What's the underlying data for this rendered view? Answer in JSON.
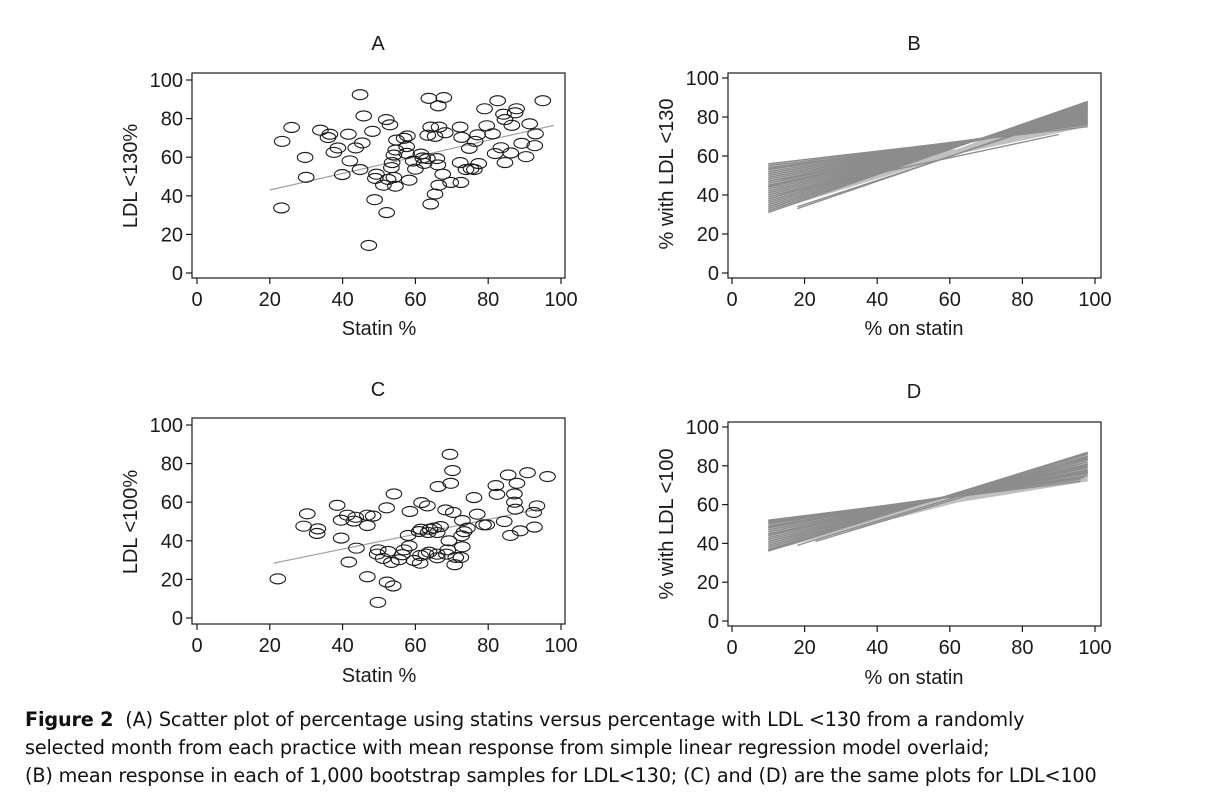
{
  "caption": {
    "label": "Figure 2",
    "lines": [
      "(A) Scatter plot of percentage using statins versus percentage with LDL <130 from a randomly",
      "selected month from each practice with mean response from simple linear regression model overlaid;",
      "(B) mean response in each of 1,000 bootstrap samples for LDL<130; (C) and (D) are the same plots for LDL<100"
    ]
  },
  "colors": {
    "axis": "#1a1a1a",
    "marker_stroke": "#1a1a1a",
    "regression_line": "#a0a0a0",
    "bootstrap_lines": "#8c8c8c"
  },
  "chart_data": [
    {
      "id": "A",
      "type": "scatter",
      "title": "A",
      "xlabel": "Statin %",
      "ylabel": "LDL <130%",
      "xlim": [
        0,
        100
      ],
      "ylim": [
        0,
        100
      ],
      "xticks": [
        0,
        20,
        40,
        60,
        80,
        100
      ],
      "yticks": [
        0,
        20,
        40,
        60,
        80,
        100
      ],
      "grid": false,
      "marker": "hollow-ellipse",
      "points": [
        [
          23.2,
          33.7
        ],
        [
          23.4,
          68.2
        ],
        [
          26,
          75.4
        ],
        [
          29.7,
          59.9
        ],
        [
          30,
          49.6
        ],
        [
          33.9,
          74
        ],
        [
          36.5,
          71.9
        ],
        [
          36,
          70.2
        ],
        [
          37.6,
          62.5
        ],
        [
          38.7,
          64.8
        ],
        [
          39.9,
          51
        ],
        [
          41.6,
          71.9
        ],
        [
          42,
          58.1
        ],
        [
          43.6,
          64.8
        ],
        [
          44.8,
          92.4
        ],
        [
          45.4,
          67.4
        ],
        [
          45.8,
          81.4
        ],
        [
          44.8,
          53.6
        ],
        [
          48.2,
          73.4
        ],
        [
          48.8,
          38
        ],
        [
          47.2,
          14.3
        ],
        [
          49.3,
          51.2
        ],
        [
          49,
          49
        ],
        [
          52,
          79.5
        ],
        [
          53,
          76.8
        ],
        [
          51.2,
          45.5
        ],
        [
          52.5,
          48.5
        ],
        [
          54.1,
          49.5
        ],
        [
          54.5,
          45
        ],
        [
          52.1,
          31.3
        ],
        [
          53.6,
          57.2
        ],
        [
          53.4,
          54.6
        ],
        [
          54.1,
          61.1
        ],
        [
          54.6,
          63.7
        ],
        [
          54.8,
          68.9
        ],
        [
          56.9,
          69.8
        ],
        [
          57.8,
          71
        ],
        [
          57.6,
          65.5
        ],
        [
          57.6,
          62
        ],
        [
          58.3,
          48.1
        ],
        [
          59.4,
          58
        ],
        [
          60,
          53.8
        ],
        [
          61.5,
          61.6
        ],
        [
          62,
          59.6
        ],
        [
          62.4,
          56.8
        ],
        [
          63.3,
          59.3
        ],
        [
          63.7,
          90.5
        ],
        [
          67.8,
          90.9
        ],
        [
          66.3,
          86.6
        ],
        [
          64.2,
          75.6
        ],
        [
          66.5,
          75.6
        ],
        [
          63.4,
          71.4
        ],
        [
          65.4,
          70.8
        ],
        [
          68.2,
          72.7
        ],
        [
          65.9,
          59.3
        ],
        [
          66.2,
          56
        ],
        [
          67.5,
          51.2
        ],
        [
          66.4,
          45.5
        ],
        [
          65.4,
          40.9
        ],
        [
          64.2,
          35.7
        ],
        [
          69.7,
          46.9
        ],
        [
          72.5,
          46.9
        ],
        [
          72.3,
          75.6
        ],
        [
          72.7,
          70.3
        ],
        [
          72.3,
          57.2
        ],
        [
          73.9,
          53.6
        ],
        [
          75.3,
          54
        ],
        [
          76.2,
          53.6
        ],
        [
          77.4,
          56.7
        ],
        [
          74.8,
          64.6
        ],
        [
          76.4,
          68.2
        ],
        [
          77.1,
          71.6
        ],
        [
          79,
          85.1
        ],
        [
          79.6,
          76.3
        ],
        [
          81.2,
          72.1
        ],
        [
          82.6,
          89.3
        ],
        [
          81.9,
          61.9
        ],
        [
          83.5,
          64.9
        ],
        [
          84.6,
          57.2
        ],
        [
          86.2,
          62.2
        ],
        [
          84.2,
          82.3
        ],
        [
          84.6,
          79.5
        ],
        [
          86.5,
          76.5
        ],
        [
          87.8,
          85.1
        ],
        [
          87.4,
          83
        ],
        [
          89.2,
          67.2
        ],
        [
          90.4,
          60.3
        ],
        [
          91.4,
          77.3
        ],
        [
          92.8,
          66
        ],
        [
          93,
          72.1
        ],
        [
          95,
          89.3
        ]
      ],
      "regression": {
        "x": [
          20,
          98
        ],
        "y": [
          43,
          76.5
        ]
      }
    },
    {
      "id": "B",
      "type": "line",
      "title": "B",
      "xlabel": "% on statin",
      "ylabel": "% with LDL <130",
      "xlim": [
        0,
        100
      ],
      "ylim": [
        0,
        100
      ],
      "xticks": [
        0,
        20,
        40,
        60,
        80,
        100
      ],
      "yticks": [
        0,
        20,
        40,
        60,
        80,
        100
      ],
      "grid": false,
      "description": "Mean response lines from 1,000 bootstrap samples (representative subset shown)",
      "band": {
        "x_start": 10,
        "x_end": 98,
        "y_at_start": [
          31,
          56
        ],
        "y_at_end": [
          75,
          88
        ]
      },
      "lines": [
        [
          10,
          56,
          98,
          75
        ],
        [
          10,
          55,
          98,
          76
        ],
        [
          10,
          54,
          98,
          76.5
        ],
        [
          10,
          53,
          98,
          77
        ],
        [
          10,
          52,
          98,
          77.5
        ],
        [
          10,
          51,
          98,
          78
        ],
        [
          10,
          50,
          98,
          78.5
        ],
        [
          10,
          49,
          98,
          79
        ],
        [
          10,
          48,
          98,
          79.5
        ],
        [
          10,
          47,
          98,
          80
        ],
        [
          10,
          46,
          98,
          80.5
        ],
        [
          10,
          45,
          98,
          81
        ],
        [
          10,
          44,
          98,
          81.5
        ],
        [
          10,
          43,
          98,
          82
        ],
        [
          10,
          42,
          98,
          82.5
        ],
        [
          10,
          41,
          98,
          83
        ],
        [
          10,
          40,
          98,
          83.5
        ],
        [
          10,
          39,
          98,
          84
        ],
        [
          10,
          38,
          98,
          84.5
        ],
        [
          10,
          37,
          98,
          85
        ],
        [
          10,
          36,
          98,
          85.5
        ],
        [
          10,
          35,
          98,
          86
        ],
        [
          10,
          34,
          98,
          86.5
        ],
        [
          10,
          33,
          98,
          87
        ],
        [
          10,
          32,
          98,
          87.5
        ],
        [
          10,
          31,
          98,
          88
        ],
        [
          18,
          33,
          98,
          84
        ],
        [
          18,
          34,
          98,
          83
        ],
        [
          12,
          40,
          90,
          71
        ],
        [
          14,
          48,
          96,
          79
        ],
        [
          10,
          53.5,
          97,
          76
        ],
        [
          10,
          44.5,
          98,
          80.2
        ]
      ]
    },
    {
      "id": "C",
      "type": "scatter",
      "title": "C",
      "xlabel": "Statin %",
      "ylabel": "LDL <100%",
      "xlim": [
        0,
        100
      ],
      "ylim": [
        0,
        100
      ],
      "xticks": [
        0,
        20,
        40,
        60,
        80,
        100
      ],
      "yticks": [
        0,
        20,
        40,
        60,
        80,
        100
      ],
      "grid": false,
      "marker": "hollow-ellipse",
      "points": [
        [
          22.2,
          20.3
        ],
        [
          29.3,
          47.6
        ],
        [
          30.3,
          54
        ],
        [
          33.2,
          46.2
        ],
        [
          33,
          43.8
        ],
        [
          38.5,
          58.4
        ],
        [
          39.6,
          41.4
        ],
        [
          39.6,
          50.7
        ],
        [
          41.3,
          53.3
        ],
        [
          41.7,
          29
        ],
        [
          43.1,
          50.2
        ],
        [
          43.6,
          52.2
        ],
        [
          43.8,
          36.2
        ],
        [
          46.8,
          21.4
        ],
        [
          46.8,
          47.9
        ],
        [
          46.8,
          53.3
        ],
        [
          48.4,
          52.8
        ],
        [
          49.7,
          8.1
        ],
        [
          49.8,
          35.3
        ],
        [
          49.5,
          33.1
        ],
        [
          51.1,
          30.9
        ],
        [
          52.2,
          18.6
        ],
        [
          53.9,
          16.6
        ],
        [
          52.1,
          57.1
        ],
        [
          54.1,
          64.3
        ],
        [
          52.5,
          34.5
        ],
        [
          53.4,
          28.8
        ],
        [
          55.5,
          30.2
        ],
        [
          56.4,
          32.8
        ],
        [
          56.9,
          35.3
        ],
        [
          58.3,
          37.4
        ],
        [
          58,
          42.8
        ],
        [
          58.5,
          55.2
        ],
        [
          59.6,
          29.8
        ],
        [
          61.3,
          28.4
        ],
        [
          61.4,
          32.4
        ],
        [
          61,
          44.8
        ],
        [
          61.7,
          59.8
        ],
        [
          63.3,
          58.1
        ],
        [
          61.5,
          46
        ],
        [
          63.5,
          44.3
        ],
        [
          64,
          46
        ],
        [
          62.9,
          33.1
        ],
        [
          63.8,
          34.1
        ],
        [
          65.1,
          46.6
        ],
        [
          66,
          44.3
        ],
        [
          66.9,
          47.4
        ],
        [
          66,
          31.2
        ],
        [
          66,
          33.1
        ],
        [
          66.2,
          68.1
        ],
        [
          68.3,
          56
        ],
        [
          68.9,
          35.3
        ],
        [
          68.5,
          33.1
        ],
        [
          69.2,
          40
        ],
        [
          69.5,
          84.8
        ],
        [
          70.2,
          76.4
        ],
        [
          69.7,
          69.8
        ],
        [
          70.4,
          54.7
        ],
        [
          70.8,
          27.6
        ],
        [
          71.1,
          31.4
        ],
        [
          72.5,
          31.4
        ],
        [
          72.9,
          36.9
        ],
        [
          72.7,
          42.6
        ],
        [
          72.9,
          50.5
        ],
        [
          73.4,
          44.7
        ],
        [
          74.3,
          46.6
        ],
        [
          76.1,
          62.4
        ],
        [
          77,
          53.8
        ],
        [
          78.7,
          48.3
        ],
        [
          79.6,
          48.3
        ],
        [
          82.1,
          68.6
        ],
        [
          82.4,
          64.1
        ],
        [
          84.4,
          50
        ],
        [
          85.5,
          74.1
        ],
        [
          86.1,
          42.8
        ],
        [
          87.2,
          64.3
        ],
        [
          87.2,
          60
        ],
        [
          87.5,
          56.4
        ],
        [
          87.9,
          69.8
        ],
        [
          88.8,
          45.2
        ],
        [
          90.8,
          75.3
        ],
        [
          92.5,
          54.7
        ],
        [
          92.7,
          47.1
        ],
        [
          93.4,
          58.1
        ],
        [
          96.3,
          73.3
        ]
      ],
      "regression": {
        "x": [
          21,
          94
        ],
        "y": [
          28.4,
          56.5
        ]
      }
    },
    {
      "id": "D",
      "type": "line",
      "title": "D",
      "xlabel": "% on statin",
      "ylabel": "% with LDL <100",
      "xlim": [
        0,
        100
      ],
      "ylim": [
        0,
        100
      ],
      "xticks": [
        0,
        20,
        40,
        60,
        80,
        100
      ],
      "yticks": [
        0,
        20,
        40,
        60,
        80,
        100
      ],
      "grid": false,
      "description": "Mean response lines from 1,000 bootstrap samples (representative subset shown)",
      "band": {
        "x_start": 10,
        "x_end": 98,
        "y_at_start": [
          36,
          52
        ],
        "y_at_end": [
          72,
          87
        ]
      },
      "lines": [
        [
          10,
          52,
          96,
          72
        ],
        [
          10,
          51.5,
          96,
          73
        ],
        [
          10,
          51,
          97,
          74
        ],
        [
          10,
          50.5,
          97,
          74.5
        ],
        [
          10,
          50,
          98,
          75
        ],
        [
          10,
          49,
          98,
          76
        ],
        [
          10,
          48,
          98,
          77
        ],
        [
          10,
          47,
          98,
          77.5
        ],
        [
          10,
          46,
          98,
          78
        ],
        [
          10,
          45,
          98,
          79
        ],
        [
          10,
          44,
          98,
          80
        ],
        [
          10,
          43,
          98,
          80.5
        ],
        [
          10,
          42,
          98,
          81
        ],
        [
          10,
          41,
          98,
          82
        ],
        [
          10,
          40,
          98,
          83
        ],
        [
          10,
          39,
          98,
          84
        ],
        [
          10,
          38,
          98,
          85
        ],
        [
          10,
          37,
          98,
          86
        ],
        [
          10,
          36.5,
          98,
          86.5
        ],
        [
          10,
          36,
          98,
          87
        ],
        [
          18,
          39,
          98,
          84.5
        ],
        [
          23,
          41,
          98,
          83.5
        ],
        [
          10,
          44.5,
          98,
          79.5
        ],
        [
          10,
          48.5,
          98,
          76.5
        ]
      ]
    }
  ]
}
